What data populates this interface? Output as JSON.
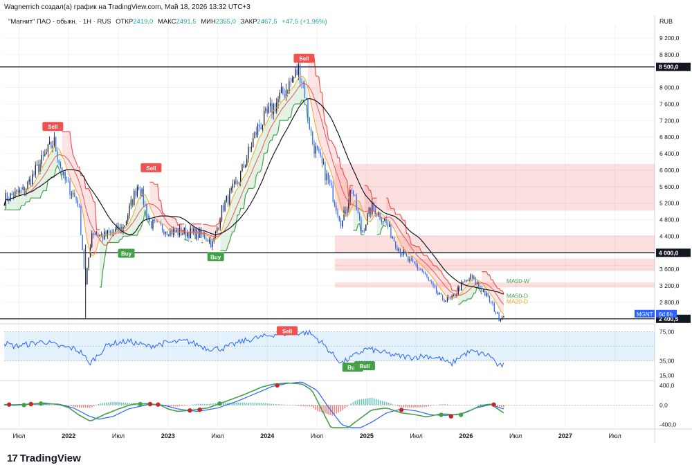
{
  "header": {
    "credit": "Wagnerrich создал(а) график на TradingView.com, Май 18, 2026 13:32 UTC+3",
    "symbol_line": "\"Магнит\" ПАО - обыкн. · 1Н · RUS",
    "open_label": "ОТКР",
    "open_value": "2419,0",
    "high_label": "МАКС",
    "high_value": "2491,5",
    "low_label": "МИН",
    "low_value": "2355,0",
    "close_label": "ЗАКР",
    "close_value": "2467,5",
    "change": "+47,5 (+1,96%)"
  },
  "currency": "RUB",
  "brand": "TradingView",
  "chart_data": [
    {
      "type": "candlestick",
      "id": "price",
      "symbol": "MGNT",
      "timeframe_badge": "6d 6h",
      "y_ticks": [
        2800,
        3200,
        3600,
        4400,
        4800,
        5200,
        5600,
        6000,
        6400,
        6800,
        7200,
        7600,
        8000,
        8800,
        9200
      ],
      "y_tick_labels": [
        "2 800,0",
        "3 200,0",
        "3 600,0",
        "4 400,0",
        "4 800,0",
        "5 200,0",
        "5 600,0",
        "6 000,0",
        "6 400,0",
        "6 800,0",
        "7 200,0",
        "7 600,0",
        "8 000,0",
        "8 800,0",
        "9 200,0"
      ],
      "ylim": [
        2380,
        9450
      ],
      "x_ticks": [
        "Июл",
        "2022",
        "Июл",
        "2023",
        "Июл",
        "2024",
        "Июл",
        "2025",
        "Июл",
        "2026",
        "Июл",
        "2027",
        "Июл"
      ],
      "x_tick_times": [
        2021.5,
        2022.0,
        2022.5,
        2023.0,
        2023.5,
        2024.0,
        2024.5,
        2025.0,
        2025.5,
        2026.0,
        2026.5,
        2027.0,
        2027.5
      ],
      "xlim": [
        2021.35,
        2027.9
      ],
      "horizontal_levels": [
        {
          "value": 8500,
          "label": "8 500,0"
        },
        {
          "value": 4000,
          "label": "4 000,0"
        },
        {
          "value": 2400.5,
          "label": "2 400,5"
        }
      ],
      "resistance_zones": [
        [
          5020,
          6150
        ],
        [
          4000,
          4420
        ],
        [
          3680,
          3860
        ],
        [
          3560,
          3700
        ],
        [
          3160,
          3280
        ]
      ],
      "zone_start_time": 2024.68,
      "anchors_time": [
        2021.35,
        2021.55,
        2021.75,
        2021.85,
        2021.95,
        2022.1,
        2022.17,
        2022.23,
        2022.35,
        2022.55,
        2022.7,
        2022.82,
        2022.95,
        2023.05,
        2023.2,
        2023.38,
        2023.45,
        2023.55,
        2023.7,
        2023.9,
        2024.05,
        2024.2,
        2024.32,
        2024.37,
        2024.45,
        2024.62,
        2024.75,
        2024.85,
        2024.95,
        2025.05,
        2025.18,
        2025.3,
        2025.42,
        2025.55,
        2025.68,
        2025.75,
        2025.85,
        2025.95,
        2026.05,
        2026.15,
        2026.25,
        2026.33,
        2026.38
      ],
      "anchors_price": [
        5300,
        5500,
        6300,
        6700,
        5800,
        5200,
        3200,
        4500,
        4400,
        4600,
        5700,
        4700,
        4600,
        4500,
        4500,
        4400,
        4200,
        5100,
        5700,
        7000,
        7500,
        8000,
        8450,
        8000,
        6700,
        5700,
        4700,
        5600,
        4500,
        5100,
        4800,
        4200,
        3800,
        3600,
        3100,
        2900,
        2850,
        3200,
        3400,
        3150,
        2800,
        2420,
        2468
      ],
      "ma_lines": [
        {
          "name": "MA50-W",
          "color": "#131722",
          "last": 3320
        },
        {
          "name": "MA50-D",
          "color": "#ef5350",
          "last": 2960
        },
        {
          "name": "MA20-D",
          "color": "#f5a623",
          "last": 2820
        }
      ],
      "signals": [
        {
          "text": "Sell",
          "time": 2021.84,
          "price": 6950
        },
        {
          "text": "Buy",
          "time": 2022.58,
          "price": 4080
        },
        {
          "text": "Sell",
          "time": 2022.83,
          "price": 5950
        },
        {
          "text": "Buy",
          "time": 2023.48,
          "price": 4000
        },
        {
          "text": "Sell",
          "time": 2024.37,
          "price": 8600
        }
      ]
    },
    {
      "type": "line",
      "id": "oscillator",
      "y_ticks": [
        75,
        35,
        15
      ],
      "y_tick_labels": [
        "75,00",
        "35,00",
        "15,00"
      ],
      "ylim": [
        10,
        82
      ],
      "band": [
        35,
        75
      ],
      "anchors_time": [
        2021.35,
        2021.45,
        2021.6,
        2021.75,
        2021.9,
        2022.05,
        2022.15,
        2022.2,
        2022.4,
        2022.6,
        2022.8,
        2023.0,
        2023.2,
        2023.4,
        2023.55,
        2023.75,
        2023.95,
        2024.1,
        2024.3,
        2024.42,
        2024.55,
        2024.65,
        2024.75,
        2024.85,
        2025.0,
        2025.15,
        2025.3,
        2025.45,
        2025.6,
        2025.75,
        2025.85,
        2025.95,
        2026.05,
        2026.15,
        2026.25,
        2026.33,
        2026.38
      ],
      "anchors_value": [
        60,
        55,
        58,
        62,
        55,
        52,
        45,
        30,
        58,
        62,
        55,
        60,
        62,
        52,
        52,
        62,
        68,
        72,
        73,
        74,
        60,
        45,
        32,
        40,
        52,
        47,
        42,
        40,
        42,
        38,
        30,
        42,
        48,
        45,
        42,
        27,
        30
      ],
      "signals": [
        {
          "text": "Sell",
          "time": 2024.2,
          "value": 76
        },
        {
          "text": "Bull",
          "time": 2024.86,
          "value": 26
        },
        {
          "text": "Bull",
          "time": 2024.98,
          "value": 28
        }
      ]
    },
    {
      "type": "histogram",
      "id": "macd",
      "y_ticks": [
        400,
        0,
        -400
      ],
      "y_tick_labels": [
        "400,0",
        "0,0",
        "-400,0"
      ],
      "ylim": [
        -460,
        470
      ],
      "macd_anchors_time": [
        2021.35,
        2021.45,
        2021.6,
        2021.75,
        2021.9,
        2022.0,
        2022.1,
        2022.22,
        2022.35,
        2022.5,
        2022.65,
        2022.8,
        2022.92,
        2023.0,
        2023.1,
        2023.25,
        2023.4,
        2023.55,
        2023.75,
        2023.95,
        2024.05,
        2024.2,
        2024.35,
        2024.45,
        2024.55,
        2024.65,
        2024.75,
        2024.85,
        2024.95,
        2025.05,
        2025.2,
        2025.35,
        2025.5,
        2025.6,
        2025.75,
        2025.9,
        2026.0,
        2026.15,
        2026.25,
        2026.3,
        2026.38
      ],
      "macd_anchors_value": [
        10,
        -5,
        20,
        40,
        10,
        -50,
        -200,
        -330,
        -200,
        -80,
        20,
        30,
        0,
        -80,
        -130,
        -100,
        -60,
        50,
        200,
        370,
        420,
        450,
        430,
        300,
        -100,
        -500,
        -600,
        -400,
        -250,
        -100,
        -60,
        -160,
        -200,
        -240,
        -180,
        -200,
        -150,
        -10,
        20,
        -50,
        -160
      ],
      "signal_anchors_time": [
        2021.35,
        2021.5,
        2021.7,
        2021.9,
        2022.05,
        2022.2,
        2022.3,
        2022.45,
        2022.6,
        2022.8,
        2022.95,
        2023.1,
        2023.3,
        2023.5,
        2023.7,
        2023.9,
        2024.05,
        2024.2,
        2024.35,
        2024.5,
        2024.6,
        2024.75,
        2024.9,
        2025.05,
        2025.2,
        2025.35,
        2025.5,
        2025.65,
        2025.8,
        2025.95,
        2026.1,
        2026.25,
        2026.38
      ],
      "signal_anchors_value": [
        0,
        10,
        20,
        20,
        -60,
        -220,
        -290,
        -230,
        -80,
        10,
        0,
        -80,
        -130,
        -60,
        80,
        250,
        380,
        440,
        470,
        300,
        0,
        -400,
        -500,
        -350,
        -160,
        -80,
        -120,
        -200,
        -210,
        -180,
        -60,
        10,
        -80
      ],
      "cross_points_time": [
        2021.4,
        2021.55,
        2021.62,
        2021.72,
        2022.72,
        2022.82,
        2022.9,
        2023.22,
        2023.32,
        2023.52,
        2024.1,
        2025.35,
        2025.75,
        2025.85,
        2025.95,
        2026.28
      ],
      "cross_points_value": [
        10,
        0,
        20,
        30,
        20,
        20,
        10,
        -110,
        -95,
        30,
        400,
        -100,
        -200,
        -230,
        -200,
        10
      ],
      "cross_points_color": [
        "red",
        "green",
        "red",
        "green",
        "green",
        "red",
        "red",
        "red",
        "red",
        "green",
        "red",
        "red",
        "green",
        "red",
        "green",
        "red"
      ]
    }
  ]
}
